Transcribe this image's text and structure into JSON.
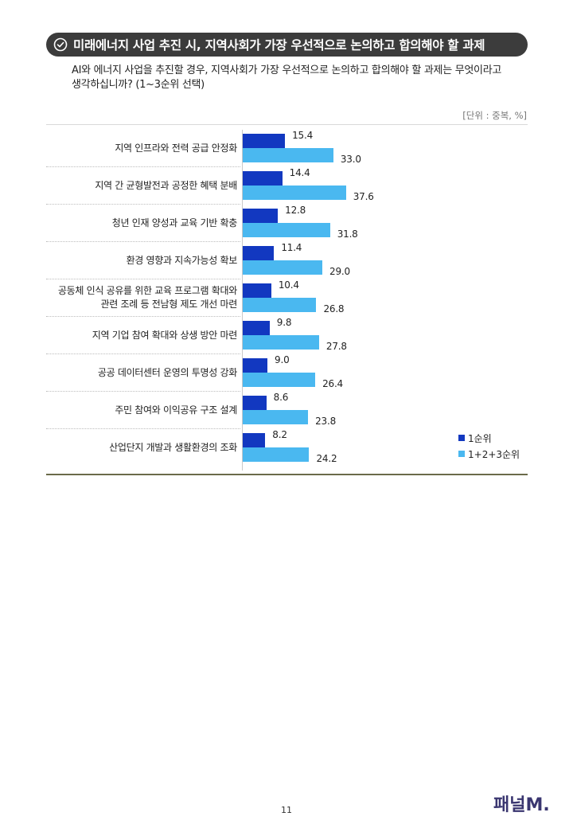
{
  "header": {
    "title": "미래에너지 사업 추진 시, 지역사회가 가장 우선적으로 논의하고 합의해야 할 과제",
    "question": "AI와 에너지 사업을 추진할 경우, 지역사회가 가장 우선적으로 논의하고 합의해야 할 과제는 무엇이라고 생각하십니까? (1~3순위 선택)",
    "unit": "[단위 : 중복, %]"
  },
  "chart_data": {
    "type": "bar",
    "orientation": "horizontal",
    "categories": [
      "지역 인프라와 전력 공급 안정화",
      "지역 간 균형발전과 공정한 혜택 분배",
      "청년 인재 양성과 교육 기반 확충",
      "환경 영향과 지속가능성 확보",
      "공동체 인식 공유를 위한 교육 프로그램 확대와\n관련 조례 등 전남형 제도 개선 마련",
      "지역 기업 참여 확대와 상생 방안 마련",
      "공공 데이터센터 운영의 투명성 강화",
      "주민 참여와 이익공유 구조 설계",
      "산업단지 개발과 생활환경의 조화"
    ],
    "series": [
      {
        "name": "1순위",
        "color": "#1238c0",
        "values": [
          15.4,
          14.4,
          12.8,
          11.4,
          10.4,
          9.8,
          9.0,
          8.6,
          8.2
        ],
        "labels": [
          "15.4",
          "14.4",
          "12.8",
          "11.4",
          "10.4",
          "9.8",
          "9.0",
          "8.6",
          "8.2"
        ]
      },
      {
        "name": "1+2+3순위",
        "color": "#4ab8f0",
        "values": [
          33.0,
          37.6,
          31.8,
          29.0,
          26.8,
          27.8,
          26.4,
          23.8,
          24.2
        ],
        "labels": [
          "33.0",
          "37.6",
          "31.8",
          "29.0",
          "26.8",
          "27.8",
          "26.4",
          "23.8",
          "24.2"
        ]
      }
    ],
    "xlim": [
      0,
      100
    ],
    "legend_position": "bottom-right",
    "grid": false
  },
  "footer": {
    "page_number": "11",
    "logo_text": "패널M."
  }
}
